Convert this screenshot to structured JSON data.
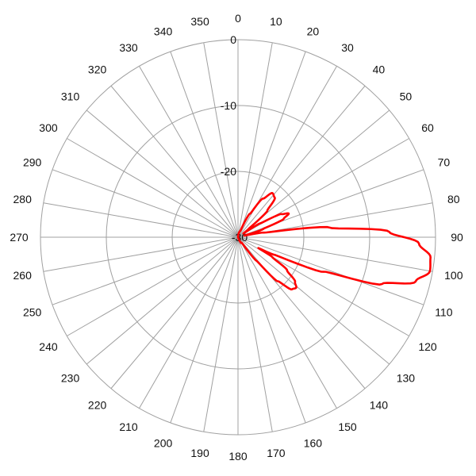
{
  "chart_data": {
    "type": "polar-line",
    "title": "",
    "radial_axis": {
      "min": -30,
      "max": 0,
      "ticks": [
        0,
        -10,
        -20,
        -30
      ],
      "tick_labels": [
        "0",
        "-10",
        "-20",
        "-30"
      ]
    },
    "angular_axis": {
      "direction": "clockwise",
      "zero": "top",
      "step": 10,
      "tick_labels": [
        "0",
        "10",
        "20",
        "30",
        "40",
        "50",
        "60",
        "70",
        "80",
        "90",
        "100",
        "110",
        "120",
        "130",
        "140",
        "150",
        "160",
        "170",
        "180",
        "190",
        "200",
        "210",
        "220",
        "230",
        "240",
        "250",
        "260",
        "270",
        "280",
        "290",
        "300",
        "310",
        "320",
        "330",
        "340",
        "350"
      ]
    },
    "grid": true,
    "series": [
      {
        "color": "#ff0000",
        "points": [
          {
            "angle": 0,
            "value": -30
          },
          {
            "angle": 20,
            "value": -29
          },
          {
            "angle": 27,
            "value": -26
          },
          {
            "angle": 33,
            "value": -23
          },
          {
            "angle": 38,
            "value": -21.5
          },
          {
            "angle": 43,
            "value": -21.8
          },
          {
            "angle": 48,
            "value": -24
          },
          {
            "angle": 52,
            "value": -28
          },
          {
            "angle": 55,
            "value": -29
          },
          {
            "angle": 58,
            "value": -26
          },
          {
            "angle": 62,
            "value": -22.5
          },
          {
            "angle": 65,
            "value": -21.5
          },
          {
            "angle": 68,
            "value": -22.5
          },
          {
            "angle": 72,
            "value": -26
          },
          {
            "angle": 76,
            "value": -29
          },
          {
            "angle": 80,
            "value": -26
          },
          {
            "angle": 84,
            "value": -16
          },
          {
            "angle": 88,
            "value": -7
          },
          {
            "angle": 92,
            "value": -2.5
          },
          {
            "angle": 96,
            "value": -0.6
          },
          {
            "angle": 100,
            "value": -0.4
          },
          {
            "angle": 104,
            "value": -2.2
          },
          {
            "angle": 108,
            "value": -7
          },
          {
            "angle": 112,
            "value": -16
          },
          {
            "angle": 116,
            "value": -24
          },
          {
            "angle": 118,
            "value": -26.5
          },
          {
            "angle": 120,
            "value": -24
          },
          {
            "angle": 124,
            "value": -21
          },
          {
            "angle": 128,
            "value": -19
          },
          {
            "angle": 131,
            "value": -18.3
          },
          {
            "angle": 134,
            "value": -18.6
          },
          {
            "angle": 138,
            "value": -21
          },
          {
            "angle": 142,
            "value": -25.5
          },
          {
            "angle": 146,
            "value": -29
          },
          {
            "angle": 152,
            "value": -29
          },
          {
            "angle": 160,
            "value": -30
          },
          {
            "angle": 360,
            "value": -30
          }
        ]
      }
    ]
  }
}
